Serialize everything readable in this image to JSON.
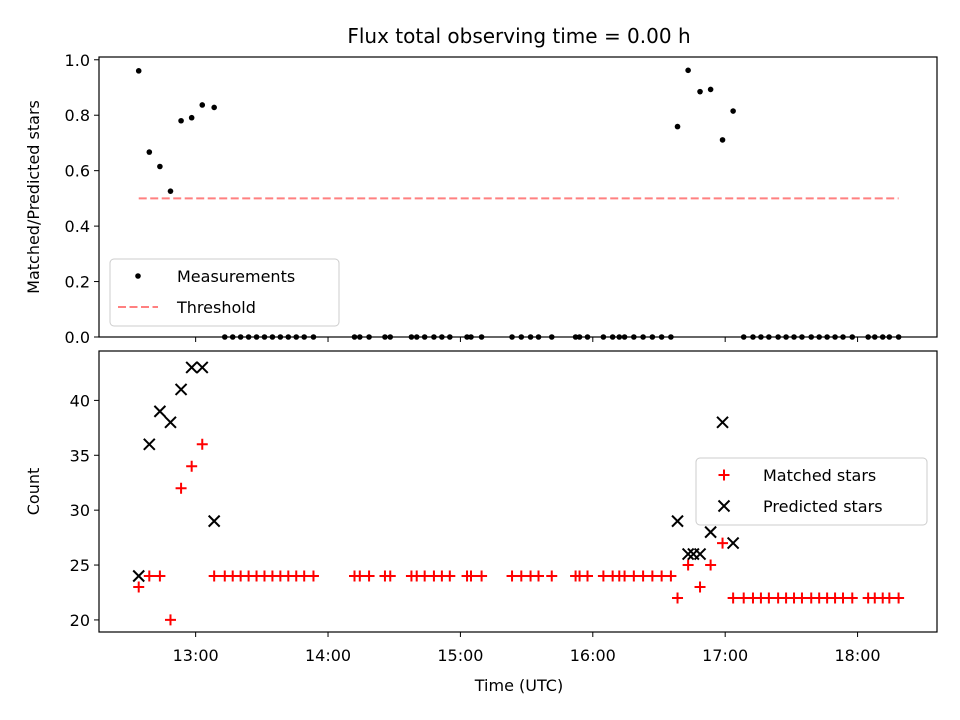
{
  "chart_data": {
    "type": "scatter",
    "title": "Flux total observing time = 0.00 h",
    "xlabel": "Time (UTC)",
    "x_ticks": [
      "13:00",
      "14:00",
      "15:00",
      "16:00",
      "17:00",
      "18:00"
    ],
    "x_tick_hours": [
      13,
      14,
      15,
      16,
      17,
      18
    ],
    "xlim": [
      12.27,
      18.6
    ],
    "panels": [
      {
        "id": "ratio",
        "ylabel": "Matched/Predicted stars",
        "ylim": [
          0,
          1.01
        ],
        "y_ticks": [
          0.0,
          0.2,
          0.4,
          0.6,
          0.8,
          1.0
        ],
        "y_tick_labels": [
          "0.0",
          "0.2",
          "0.4",
          "0.6",
          "0.8",
          "1.0"
        ],
        "legend": "lower-left",
        "series": [
          {
            "name": "Measurements",
            "marker": "dot",
            "color": "#000000",
            "x": [
              12.57,
              12.65,
              12.73,
              12.81,
              12.89,
              12.97,
              13.05,
              13.14,
              13.22,
              13.28,
              13.34,
              13.4,
              13.46,
              13.52,
              13.58,
              13.64,
              13.7,
              13.76,
              13.82,
              13.89,
              14.2,
              14.24,
              14.31,
              14.43,
              14.47,
              14.63,
              14.67,
              14.73,
              14.8,
              14.86,
              14.92,
              15.05,
              15.08,
              15.16,
              15.39,
              15.46,
              15.53,
              15.59,
              15.69,
              15.87,
              15.9,
              15.96,
              16.08,
              16.15,
              16.2,
              16.24,
              16.31,
              16.38,
              16.45,
              16.52,
              16.59,
              16.64,
              16.72,
              16.81,
              16.89,
              16.98,
              17.06,
              17.14,
              17.21,
              17.27,
              17.33,
              17.4,
              17.46,
              17.52,
              17.58,
              17.65,
              17.71,
              17.77,
              17.83,
              17.89,
              17.96,
              18.08,
              18.13,
              18.19,
              18.24,
              18.31
            ],
            "y": [
              0.96,
              0.667,
              0.615,
              0.526,
              0.78,
              0.791,
              0.837,
              0.828,
              0,
              0,
              0,
              0,
              0,
              0,
              0,
              0,
              0,
              0,
              0,
              0,
              0,
              0,
              0,
              0,
              0,
              0,
              0,
              0,
              0,
              0,
              0,
              0,
              0,
              0,
              0,
              0,
              0,
              0,
              0,
              0,
              0,
              0,
              0,
              0,
              0,
              0,
              0,
              0,
              0,
              0,
              0,
              0.759,
              0.962,
              0.885,
              0.893,
              0.711,
              0.815,
              0,
              0,
              0,
              0,
              0,
              0,
              0,
              0,
              0,
              0,
              0,
              0,
              0,
              0,
              0,
              0,
              0,
              0,
              0
            ]
          },
          {
            "name": "Threshold",
            "marker": "dashed-line",
            "color": "#ff8080",
            "x": [
              12.57,
              18.31
            ],
            "y": [
              0.5,
              0.5
            ]
          }
        ]
      },
      {
        "id": "count",
        "ylabel": "Count",
        "ylim": [
          18.9,
          44.5
        ],
        "y_ticks": [
          20,
          25,
          30,
          35,
          40
        ],
        "y_tick_labels": [
          "20",
          "25",
          "30",
          "35",
          "40"
        ],
        "legend": "center-right",
        "series": [
          {
            "name": "Matched stars",
            "marker": "plus",
            "color": "#ff0000",
            "x": [
              12.57,
              12.65,
              12.73,
              12.81,
              12.89,
              12.97,
              13.05,
              13.14,
              13.22,
              13.28,
              13.34,
              13.4,
              13.46,
              13.52,
              13.58,
              13.64,
              13.7,
              13.76,
              13.82,
              13.89,
              14.2,
              14.24,
              14.31,
              14.43,
              14.47,
              14.63,
              14.67,
              14.73,
              14.8,
              14.86,
              14.92,
              15.05,
              15.08,
              15.16,
              15.39,
              15.46,
              15.53,
              15.59,
              15.69,
              15.87,
              15.9,
              15.96,
              16.08,
              16.15,
              16.2,
              16.24,
              16.31,
              16.38,
              16.45,
              16.52,
              16.59,
              16.64,
              16.72,
              16.81,
              16.89,
              16.98,
              17.06,
              17.14,
              17.21,
              17.27,
              17.33,
              17.4,
              17.46,
              17.52,
              17.58,
              17.65,
              17.71,
              17.77,
              17.83,
              17.89,
              17.96,
              18.08,
              18.13,
              18.19,
              18.24,
              18.31
            ],
            "y": [
              23,
              24,
              24,
              20,
              32,
              34,
              36,
              24,
              24,
              24,
              24,
              24,
              24,
              24,
              24,
              24,
              24,
              24,
              24,
              24,
              24,
              24,
              24,
              24,
              24,
              24,
              24,
              24,
              24,
              24,
              24,
              24,
              24,
              24,
              24,
              24,
              24,
              24,
              24,
              24,
              24,
              24,
              24,
              24,
              24,
              24,
              24,
              24,
              24,
              24,
              24,
              22,
              25,
              23,
              25,
              27,
              22,
              22,
              22,
              22,
              22,
              22,
              22,
              22,
              22,
              22,
              22,
              22,
              22,
              22,
              22,
              22,
              22,
              22,
              22,
              22
            ]
          },
          {
            "name": "Predicted stars",
            "marker": "x",
            "color": "#000000",
            "x": [
              12.57,
              12.65,
              12.73,
              12.81,
              12.89,
              12.97,
              13.05,
              13.14,
              16.64,
              16.72,
              16.76,
              16.81,
              16.89,
              16.98,
              17.06
            ],
            "y": [
              24,
              36,
              39,
              38,
              41,
              43,
              43,
              29,
              29,
              26,
              26,
              26,
              28,
              38,
              27
            ]
          }
        ]
      }
    ]
  }
}
